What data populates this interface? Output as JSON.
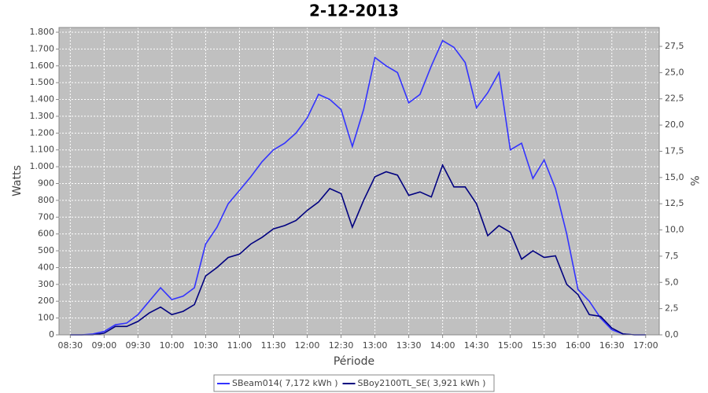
{
  "chart_data": {
    "type": "line",
    "title": "2-12-2013",
    "x_label": "Période",
    "y_label": "Watts",
    "y2_label": "%",
    "x": [
      "08:30",
      "08:40",
      "08:50",
      "09:00",
      "09:10",
      "09:20",
      "09:30",
      "09:40",
      "09:50",
      "10:00",
      "10:10",
      "10:20",
      "10:30",
      "10:40",
      "10:50",
      "11:00",
      "11:10",
      "11:20",
      "11:30",
      "11:40",
      "11:50",
      "12:00",
      "12:10",
      "12:20",
      "12:30",
      "12:40",
      "12:50",
      "13:00",
      "13:10",
      "13:20",
      "13:30",
      "13:40",
      "13:50",
      "14:00",
      "14:10",
      "14:20",
      "14:30",
      "14:40",
      "14:50",
      "15:00",
      "15:10",
      "15:20",
      "15:30",
      "15:40",
      "15:50",
      "16:00",
      "16:10",
      "16:20",
      "16:30",
      "16:40",
      "16:50",
      "17:00"
    ],
    "xlim": [
      "08:20",
      "17:12"
    ],
    "xticks": [
      "08:30",
      "09:00",
      "09:30",
      "10:00",
      "10:30",
      "11:00",
      "11:30",
      "12:00",
      "12:30",
      "13:00",
      "13:30",
      "14:00",
      "14:30",
      "15:00",
      "15:30",
      "16:00",
      "16:30",
      "17:00"
    ],
    "ylim": [
      0,
      1828
    ],
    "yticks": [
      0,
      100,
      200,
      300,
      400,
      500,
      600,
      700,
      800,
      900,
      {
        "value": 1000,
        "label": "1.000"
      },
      {
        "value": 1100,
        "label": "1.100"
      },
      {
        "value": 1200,
        "label": "1.200"
      },
      {
        "value": 1300,
        "label": "1.300"
      },
      {
        "value": 1400,
        "label": "1.400"
      },
      {
        "value": 1500,
        "label": "1.500"
      },
      {
        "value": 1600,
        "label": "1.600"
      },
      {
        "value": 1700,
        "label": "1.700"
      },
      {
        "value": 1800,
        "label": "1.800"
      }
    ],
    "y2lim": [
      0,
      29.3
    ],
    "y2ticks": [
      {
        "value": 0,
        "label": "0,0"
      },
      {
        "value": 2.5,
        "label": "2,5"
      },
      {
        "value": 5,
        "label": "5,0"
      },
      {
        "value": 7.5,
        "label": "7,5"
      },
      {
        "value": 10,
        "label": "10,0"
      },
      {
        "value": 12.5,
        "label": "12,5"
      },
      {
        "value": 15,
        "label": "15,0"
      },
      {
        "value": 17.5,
        "label": "17,5"
      },
      {
        "value": 20,
        "label": "20,0"
      },
      {
        "value": 22.5,
        "label": "22,5"
      },
      {
        "value": 25,
        "label": "25,0"
      },
      {
        "value": 27.5,
        "label": "27,5"
      }
    ],
    "grid": true,
    "legend": "bottom",
    "series": [
      {
        "name": "SBeam014( 7,172 kWh )",
        "color": "#3333ff",
        "values": [
          0,
          0,
          5,
          20,
          60,
          70,
          120,
          200,
          280,
          210,
          230,
          280,
          540,
          640,
          780,
          860,
          940,
          1030,
          1100,
          1140,
          1200,
          1290,
          1430,
          1400,
          1340,
          1120,
          1340,
          1650,
          1600,
          1560,
          1380,
          1430,
          1600,
          1750,
          1710,
          1620,
          1350,
          1440,
          1560,
          1100,
          1140,
          930,
          1040,
          870,
          600,
          270,
          200,
          100,
          30,
          5,
          0,
          0
        ]
      },
      {
        "name": "SBoy2100TL_SE( 3,921 kWh )",
        "color": "#000080",
        "values": [
          0,
          0,
          0,
          10,
          50,
          50,
          80,
          130,
          165,
          120,
          140,
          180,
          350,
          400,
          460,
          480,
          540,
          580,
          630,
          650,
          680,
          740,
          790,
          870,
          840,
          640,
          800,
          940,
          970,
          950,
          830,
          850,
          820,
          1010,
          880,
          880,
          780,
          590,
          650,
          610,
          450,
          500,
          460,
          470,
          300,
          240,
          120,
          110,
          40,
          5,
          0,
          0
        ]
      }
    ]
  }
}
